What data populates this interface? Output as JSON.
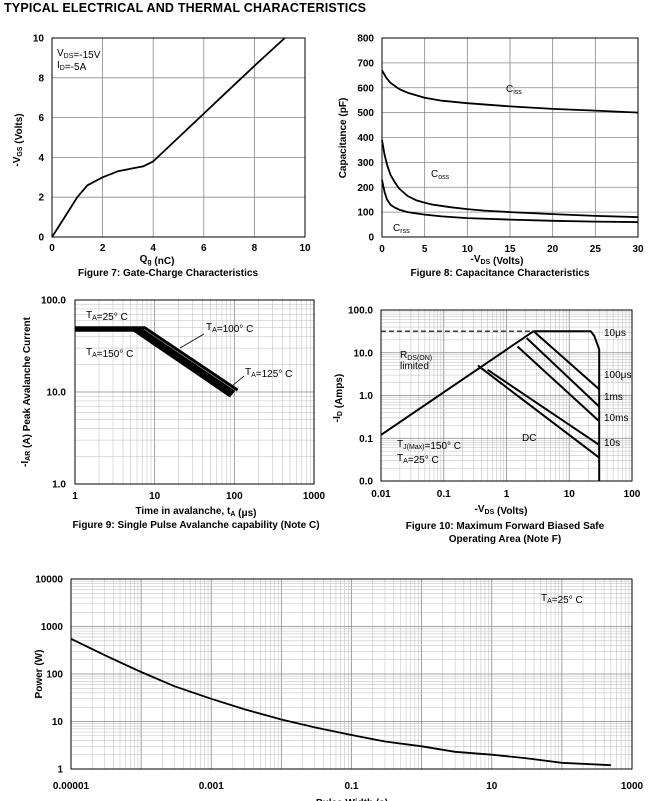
{
  "page": {
    "title": "TYPICAL ELECTRICAL AND THERMAL CHARACTERISTICS"
  },
  "chart_data": [
    {
      "id": "fig7",
      "type": "line",
      "title": "Figure 7: Gate-Charge Characteristics",
      "xlabel": "Q<sub>g</sub> (nC)",
      "ylabel": "-V<sub>GS</sub> (Volts)",
      "xlim": [
        0,
        10
      ],
      "ylim": [
        0,
        10
      ],
      "xticks": [
        0,
        2,
        4,
        6,
        8,
        10
      ],
      "yticks": [
        0,
        2,
        4,
        6,
        8,
        10
      ],
      "grid": true,
      "annotations": [
        "V<sub>DS</sub>=-15V",
        "I<sub>D</sub>=-5A"
      ],
      "series": [
        {
          "name": "VGS",
          "x": [
            0,
            0.5,
            1.0,
            1.4,
            2.0,
            2.6,
            3.2,
            3.6,
            4.0,
            5.0,
            6.0,
            7.0,
            8.0,
            9.2
          ],
          "y": [
            0,
            1.0,
            2.0,
            2.6,
            3.0,
            3.3,
            3.45,
            3.55,
            3.8,
            5.0,
            6.2,
            7.4,
            8.6,
            10.0
          ]
        }
      ]
    },
    {
      "id": "fig8",
      "type": "line",
      "title": "Figure 8: Capacitance Characteristics",
      "xlabel": "-V<sub>DS</sub> (Volts)",
      "ylabel": "Capacitance (pF)",
      "xlim": [
        0,
        30
      ],
      "ylim": [
        0,
        800
      ],
      "xticks": [
        0,
        5,
        10,
        15,
        20,
        25,
        30
      ],
      "yticks": [
        0,
        100,
        200,
        300,
        400,
        500,
        600,
        700,
        800
      ],
      "grid": true,
      "series": [
        {
          "name": "C<sub>iss</sub>",
          "x": [
            0,
            0.5,
            1,
            2,
            3,
            5,
            7,
            10,
            15,
            20,
            25,
            30
          ],
          "y": [
            670,
            640,
            620,
            595,
            580,
            560,
            548,
            538,
            525,
            515,
            508,
            500
          ]
        },
        {
          "name": "C<sub>oss</sub>",
          "x": [
            0,
            0.3,
            0.6,
            1,
            1.5,
            2,
            3,
            4,
            5,
            6,
            8,
            10,
            12,
            15,
            20,
            25,
            30
          ],
          "y": [
            390,
            330,
            290,
            250,
            220,
            195,
            165,
            148,
            138,
            130,
            120,
            112,
            106,
            100,
            92,
            85,
            80
          ]
        },
        {
          "name": "C<sub>rss</sub>",
          "x": [
            0,
            0.3,
            0.6,
            1,
            1.5,
            2,
            3,
            4,
            5,
            7,
            10,
            15,
            20,
            25,
            30
          ],
          "y": [
            230,
            180,
            150,
            130,
            118,
            110,
            100,
            95,
            90,
            83,
            76,
            70,
            65,
            62,
            60
          ]
        }
      ]
    },
    {
      "id": "fig9",
      "type": "line",
      "title": "Figure 9: Single Pulse Avalanche capability (Note C)",
      "xlabel": "Time in avalanche, t<sub>A</sub> (μs)",
      "ylabel": "-I<sub>AR</sub> (A) Peak Avalanche Current",
      "xscale": "log",
      "yscale": "log",
      "xlim": [
        1,
        1000
      ],
      "ylim": [
        1,
        100
      ],
      "xticks": [
        1,
        10,
        100,
        1000
      ],
      "xticklabels": [
        "1",
        "10",
        "100",
        "1000"
      ],
      "yticks": [
        1,
        10,
        100
      ],
      "yticklabels": [
        "1.0",
        "10.0",
        "100.0"
      ],
      "grid": true,
      "series": [
        {
          "name": "T<sub>A</sub>=25° C",
          "x": [
            1,
            7.5,
            110
          ],
          "y": [
            50,
            50,
            10.5
          ]
        },
        {
          "name": "T<sub>A</sub>=100° C",
          "x": [
            1,
            6.5,
            100
          ],
          "y": [
            49,
            49,
            10.0
          ]
        },
        {
          "name": "T<sub>A</sub>=125° C",
          "x": [
            1,
            6.0,
            95
          ],
          "y": [
            48,
            48,
            9.5
          ]
        },
        {
          "name": "T<sub>A</sub>=150° C",
          "x": [
            1,
            5.5,
            90
          ],
          "y": [
            47,
            47,
            9.0
          ]
        }
      ]
    },
    {
      "id": "fig10",
      "type": "line",
      "title": "Figure 10: Maximum Forward Biased Safe",
      "title2": "Operating Area (Note F)",
      "xlabel": "-V<sub>DS</sub> (Volts)",
      "ylabel": "-I<sub>D</sub> (Amps)",
      "xscale": "log",
      "yscale": "log",
      "xlim": [
        0.01,
        100
      ],
      "ylim": [
        0.01,
        100
      ],
      "xticks": [
        0.01,
        0.1,
        1,
        10,
        100
      ],
      "xticklabels": [
        "0.01",
        "0.1",
        "1",
        "10",
        "100"
      ],
      "yticks": [
        0.01,
        0.1,
        1,
        10,
        100
      ],
      "yticklabels": [
        "0.0",
        "0.1",
        "1.0",
        "10.0",
        "100.0"
      ],
      "grid": true,
      "annotations": [
        "R<sub>DS(ON)</sub>",
        "limited",
        "T<sub>J(Max)</sub>=150° C",
        "T<sub>A</sub>=25° C"
      ],
      "series": [
        {
          "name": "10μs",
          "x": [
            2.7,
            22,
            25,
            30,
            30
          ],
          "y": [
            32,
            32,
            25,
            12,
            0.01
          ]
        },
        {
          "name": "100μs",
          "x": [
            2.7,
            30
          ],
          "y": [
            32,
            1.4
          ]
        },
        {
          "name": "1ms",
          "x": [
            2.1,
            30
          ],
          "y": [
            22,
            0.55
          ]
        },
        {
          "name": "10ms",
          "x": [
            1.5,
            30
          ],
          "y": [
            14,
            0.25
          ]
        },
        {
          "name": "10s",
          "x": [
            0.5,
            30
          ],
          "y": [
            4.0,
            0.07
          ]
        },
        {
          "name": "DC",
          "x": [
            0.35,
            30
          ],
          "y": [
            5.0,
            0.035
          ]
        },
        {
          "name": "R<sub>DS(ON)</sub> limit",
          "x": [
            0.01,
            2.7
          ],
          "y": [
            0.12,
            32
          ]
        },
        {
          "name": "current limit",
          "x": [
            0.01,
            2.7
          ],
          "y": [
            32,
            32
          ],
          "dashed": true
        }
      ],
      "labels": [
        "10μs",
        "100μs",
        "1ms",
        "10ms",
        "DC",
        "10s"
      ]
    },
    {
      "id": "fig11",
      "type": "line",
      "title": "",
      "xlabel": "Pulse Width (s)",
      "ylabel": "Power (W)",
      "xscale": "log",
      "yscale": "log",
      "xlim": [
        1e-05,
        1000
      ],
      "ylim": [
        1,
        10000
      ],
      "xticks": [
        1e-05,
        0.001,
        0.1,
        10,
        1000
      ],
      "xticklabels": [
        "0.00001",
        "0.001",
        "0.1",
        "10",
        "1000"
      ],
      "yticks": [
        1,
        10,
        100,
        1000,
        10000
      ],
      "yticklabels": [
        "1",
        "10",
        "100",
        "1000",
        "10000"
      ],
      "grid": true,
      "annotations": [
        "T<sub>A</sub>=25° C"
      ],
      "series": [
        {
          "name": "Power",
          "x": [
            1e-05,
            3e-05,
            0.0001,
            0.0003,
            0.001,
            0.003,
            0.01,
            0.03,
            0.1,
            0.3,
            1,
            3,
            10,
            30,
            100,
            500
          ],
          "y": [
            550,
            250,
            110,
            55,
            30,
            18,
            11,
            7.5,
            5.2,
            3.8,
            3.0,
            2.3,
            2.0,
            1.7,
            1.35,
            1.2
          ]
        }
      ]
    }
  ]
}
